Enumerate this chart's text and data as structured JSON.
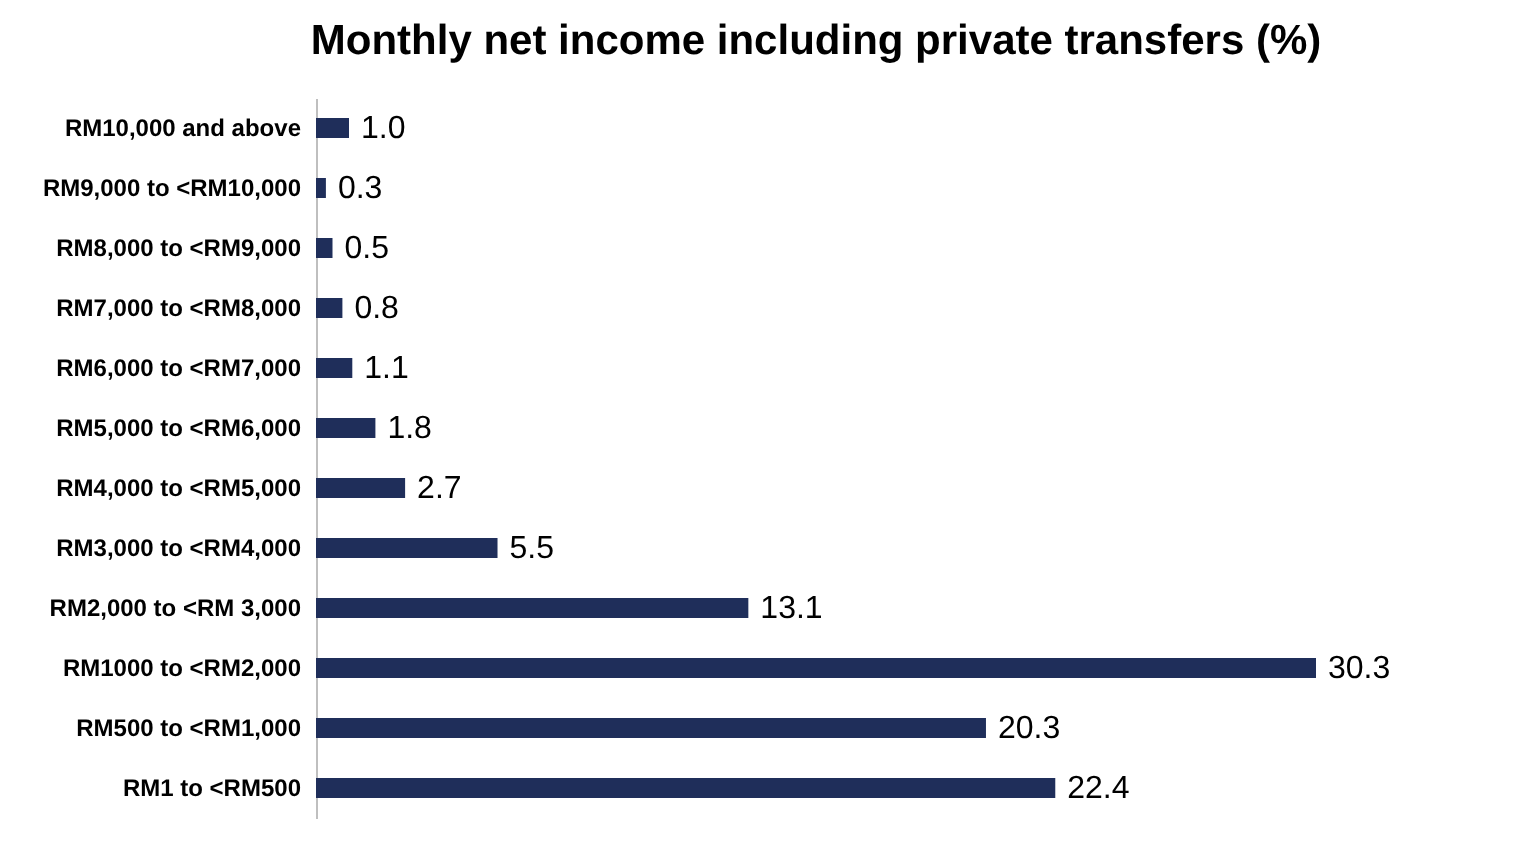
{
  "chart_data": {
    "type": "bar",
    "orientation": "horizontal",
    "title": "Monthly net income including private transfers (%)",
    "categories": [
      "RM10,000 and above",
      "RM9,000 to <RM10,000",
      "RM8,000 to <RM9,000",
      "RM7,000 to <RM8,000",
      "RM6,000 to <RM7,000",
      "RM5,000 to <RM6,000",
      "RM4,000 to <RM5,000",
      "RM3,000 to <RM4,000",
      "RM2,000 to <RM 3,000",
      "RM1000 to <RM2,000",
      "RM500 to <RM1,000",
      "RM1 to <RM500"
    ],
    "values": [
      1.0,
      0.3,
      0.5,
      0.8,
      1.1,
      1.8,
      2.7,
      5.5,
      13.1,
      30.3,
      20.3,
      22.4
    ],
    "value_labels": [
      "1.0",
      "0.3",
      "0.5",
      "0.8",
      "1.1",
      "1.8",
      "2.7",
      "5.5",
      "13.1",
      "30.3",
      "20.3",
      "22.4"
    ],
    "color": "#1f2e5a",
    "tick_labels": "y"
  }
}
